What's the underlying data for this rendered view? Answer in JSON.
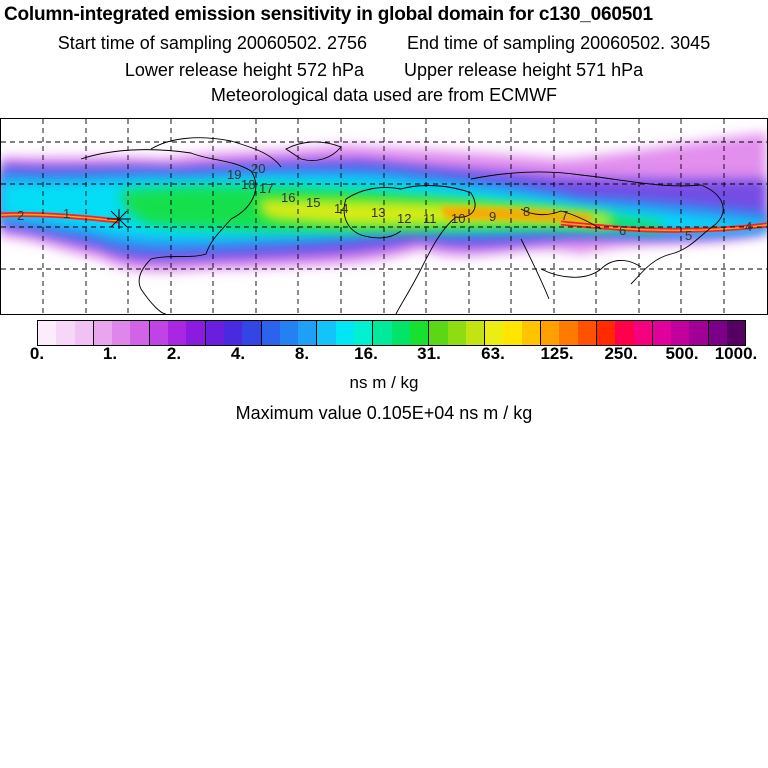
{
  "header": {
    "title": "Column-integrated emission sensitivity in global domain for c130_060501",
    "start_label": "Start time of sampling 20060502.  2756",
    "end_label": "End time of sampling 20060502.  3045",
    "lower_label": "Lower release height  572 hPa",
    "upper_label": "Upper release height  571 hPa",
    "met_label": "Meteorological data used are from ECMWF"
  },
  "map": {
    "time_labels": [
      "2",
      "1",
      "20",
      "19",
      "18",
      "17",
      "16",
      "15",
      "14",
      "13",
      "12",
      "11",
      "10",
      "9",
      "8",
      "7",
      "6",
      "5",
      "4"
    ]
  },
  "colorbar": {
    "colors": [
      "#fcecfc",
      "#f7d7f8",
      "#f1c0f4",
      "#e9a6ef",
      "#df86ea",
      "#d263e6",
      "#c043e5",
      "#a926e3",
      "#8c1be0",
      "#6a1fdf",
      "#4a2ae0",
      "#3445e6",
      "#2c63ec",
      "#2481f2",
      "#1fa0f6",
      "#14c3f9",
      "#00e6f5",
      "#00f0d0",
      "#00ea9c",
      "#00e468",
      "#17e02f",
      "#5ad815",
      "#8fdc13",
      "#c3e312",
      "#eced12",
      "#ffe500",
      "#ffc300",
      "#ff9f00",
      "#ff7a00",
      "#ff5200",
      "#ff2a00",
      "#ff004a",
      "#f5007e",
      "#e0009b",
      "#c2009e",
      "#a00096",
      "#7c0086",
      "#560064"
    ],
    "tick_labels": [
      "0.",
      "1.",
      "2.",
      "4.",
      "8.",
      "16.",
      "31.",
      "63.",
      "125.",
      "250.",
      "500.",
      "1000."
    ],
    "units": "ns m / kg",
    "max_label": "Maximum value  0.105E+04 ns m / kg"
  }
}
